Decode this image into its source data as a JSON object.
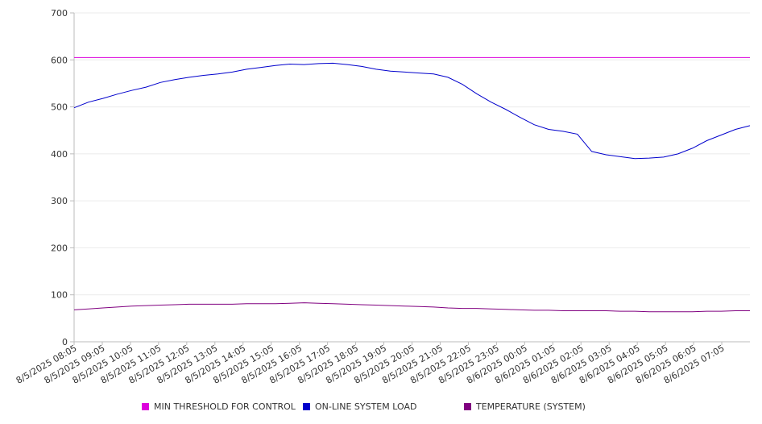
{
  "chart_data": {
    "type": "line",
    "title": "",
    "xlabel": "",
    "ylabel": "",
    "ylim": [
      0,
      700
    ],
    "yticks": [
      "0",
      "100",
      "200",
      "300",
      "400",
      "500",
      "600",
      "700"
    ],
    "grid": true,
    "legend_position": "bottom",
    "x_tick_labels": [
      "8/5/2025 08:05",
      "8/5/2025 09:05",
      "8/5/2025 10:05",
      "8/5/2025 11:05",
      "8/5/2025 12:05",
      "8/5/2025 13:05",
      "8/5/2025 14:05",
      "8/5/2025 15:05",
      "8/5/2025 16:05",
      "8/5/2025 17:05",
      "8/5/2025 18:05",
      "8/5/2025 19:05",
      "8/5/2025 20:05",
      "8/5/2025 21:05",
      "8/5/2025 22:05",
      "8/5/2025 23:05",
      "8/6/2025 00:05",
      "8/6/2025 01:05",
      "8/6/2025 02:05",
      "8/6/2025 03:05",
      "8/6/2025 04:05",
      "8/6/2025 05:05",
      "8/6/2025 06:05",
      "8/6/2025 07:05"
    ],
    "x": [
      "8/5/2025 08:05",
      "8/5/2025 08:35",
      "8/5/2025 09:05",
      "8/5/2025 09:35",
      "8/5/2025 10:05",
      "8/5/2025 10:35",
      "8/5/2025 11:05",
      "8/5/2025 11:35",
      "8/5/2025 12:05",
      "8/5/2025 12:35",
      "8/5/2025 13:05",
      "8/5/2025 13:35",
      "8/5/2025 14:05",
      "8/5/2025 14:35",
      "8/5/2025 15:05",
      "8/5/2025 15:35",
      "8/5/2025 16:05",
      "8/5/2025 16:35",
      "8/5/2025 17:05",
      "8/5/2025 17:35",
      "8/5/2025 18:05",
      "8/5/2025 18:35",
      "8/5/2025 19:05",
      "8/5/2025 19:35",
      "8/5/2025 20:05",
      "8/5/2025 20:35",
      "8/5/2025 21:05",
      "8/5/2025 21:35",
      "8/5/2025 22:05",
      "8/5/2025 22:35",
      "8/5/2025 23:05",
      "8/5/2025 23:35",
      "8/6/2025 00:05",
      "8/6/2025 00:35",
      "8/6/2025 01:05",
      "8/6/2025 01:35",
      "8/6/2025 02:05",
      "8/6/2025 02:35",
      "8/6/2025 03:05",
      "8/6/2025 03:35",
      "8/6/2025 04:05",
      "8/6/2025 04:35",
      "8/6/2025 05:05",
      "8/6/2025 05:35",
      "8/6/2025 06:05",
      "8/6/2025 06:35",
      "8/6/2025 07:05",
      "8/6/2025 07:35"
    ],
    "series": [
      {
        "name": "MIN THRESHOLD FOR CONTROL",
        "color": "#dd00dd",
        "values": [
          605,
          605,
          605,
          605,
          605,
          605,
          605,
          605,
          605,
          605,
          605,
          605,
          605,
          605,
          605,
          605,
          605,
          605,
          605,
          605,
          605,
          605,
          605,
          605,
          605,
          605,
          605,
          605,
          605,
          605,
          605,
          605,
          605,
          605,
          605,
          605,
          605,
          605,
          605,
          605,
          605,
          605,
          605,
          605,
          605,
          605,
          605,
          605
        ]
      },
      {
        "name": "ON-LINE SYSTEM LOAD",
        "color": "#0000cc",
        "values": [
          498,
          510,
          518,
          527,
          535,
          542,
          552,
          558,
          563,
          567,
          570,
          574,
          580,
          584,
          588,
          591,
          590,
          592,
          593,
          590,
          586,
          580,
          576,
          574,
          572,
          570,
          563,
          548,
          528,
          510,
          495,
          478,
          462,
          452,
          448,
          442,
          405,
          398,
          394,
          390,
          391,
          393,
          400,
          412,
          428,
          440,
          452,
          460
        ]
      },
      {
        "name": "TEMPERATURE (SYSTEM)",
        "color": "#800080",
        "values": [
          68,
          70,
          72,
          74,
          76,
          77,
          78,
          79,
          80,
          80,
          80,
          80,
          81,
          81,
          81,
          82,
          83,
          82,
          81,
          80,
          79,
          78,
          77,
          76,
          75,
          74,
          72,
          71,
          71,
          70,
          69,
          68,
          67,
          67,
          66,
          66,
          66,
          66,
          65,
          65,
          64,
          64,
          64,
          64,
          65,
          65,
          66,
          66
        ]
      }
    ]
  }
}
